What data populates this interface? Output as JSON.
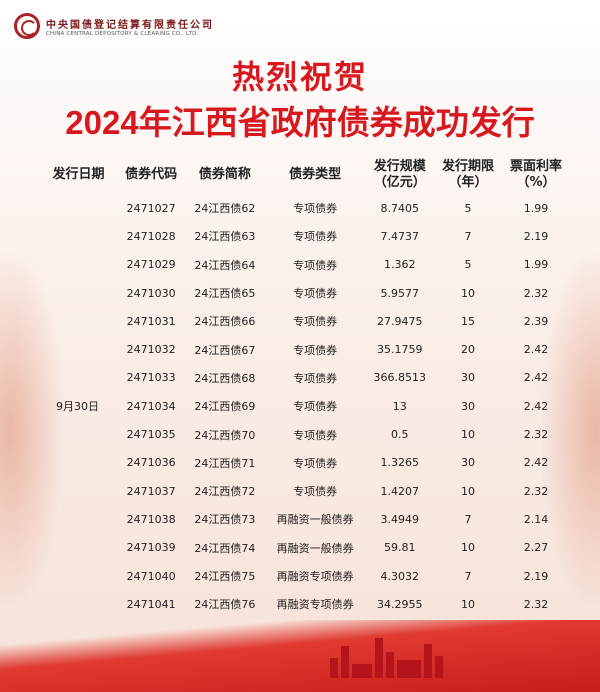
{
  "logo": {
    "cn": "中央国债登记结算有限责任公司",
    "en": "CHINA CENTRAL DEPOSITORY & CLEARING CO., LTD."
  },
  "title_line1": "热烈祝贺",
  "title_line2": "2024年江西省政府债券成功发行",
  "table": {
    "headers": [
      "发行日期",
      "债券代码",
      "债券简称",
      "债券类型",
      "发行规模\n（亿元）",
      "发行期限\n（年）",
      "票面利率\n（%）"
    ],
    "date": "9月30日",
    "rows": [
      [
        "2471027",
        "24江西债62",
        "专项债券",
        "8.7405",
        "5",
        "1.99"
      ],
      [
        "2471028",
        "24江西债63",
        "专项债券",
        "7.4737",
        "7",
        "2.19"
      ],
      [
        "2471029",
        "24江西债64",
        "专项债券",
        "1.362",
        "5",
        "1.99"
      ],
      [
        "2471030",
        "24江西债65",
        "专项债券",
        "5.9577",
        "10",
        "2.32"
      ],
      [
        "2471031",
        "24江西债66",
        "专项债券",
        "27.9475",
        "15",
        "2.39"
      ],
      [
        "2471032",
        "24江西债67",
        "专项债券",
        "35.1759",
        "20",
        "2.42"
      ],
      [
        "2471033",
        "24江西债68",
        "专项债券",
        "366.8513",
        "30",
        "2.42"
      ],
      [
        "2471034",
        "24江西债69",
        "专项债券",
        "13",
        "30",
        "2.42"
      ],
      [
        "2471035",
        "24江西债70",
        "专项债券",
        "0.5",
        "10",
        "2.32"
      ],
      [
        "2471036",
        "24江西债71",
        "专项债券",
        "1.3265",
        "30",
        "2.42"
      ],
      [
        "2471037",
        "24江西债72",
        "专项债券",
        "1.4207",
        "10",
        "2.32"
      ],
      [
        "2471038",
        "24江西债73",
        "再融资一般债券",
        "3.4949",
        "7",
        "2.14"
      ],
      [
        "2471039",
        "24江西债74",
        "再融资一般债券",
        "59.81",
        "10",
        "2.27"
      ],
      [
        "2471040",
        "24江西债75",
        "再融资专项债券",
        "4.3032",
        "7",
        "2.19"
      ],
      [
        "2471041",
        "24江西债76",
        "再融资专项债券",
        "34.2955",
        "10",
        "2.32"
      ]
    ]
  },
  "colors": {
    "title": "#d7191f",
    "brand": "#a8232a"
  }
}
